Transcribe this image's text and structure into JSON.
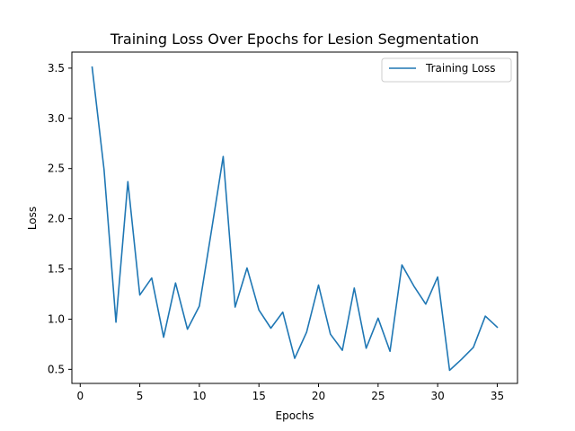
{
  "chart_data": {
    "type": "line",
    "title": "Training Loss Over Epochs for Lesion Segmentation",
    "xlabel": "Epochs",
    "ylabel": "Loss",
    "xlim": [
      -0.7,
      36.7
    ],
    "ylim": [
      0.36,
      3.66
    ],
    "xticks": [
      0,
      5,
      10,
      15,
      20,
      25,
      30,
      35
    ],
    "yticks": [
      0.5,
      1.0,
      1.5,
      2.0,
      2.5,
      3.0,
      3.5
    ],
    "grid": false,
    "legend_position": "top-right",
    "series": [
      {
        "name": "Training Loss",
        "color": "#1f77b4",
        "x": [
          1,
          2,
          3,
          4,
          5,
          6,
          7,
          8,
          9,
          10,
          11,
          12,
          13,
          14,
          15,
          16,
          17,
          18,
          19,
          20,
          21,
          22,
          23,
          24,
          25,
          26,
          27,
          28,
          29,
          30,
          31,
          32,
          33,
          34,
          35
        ],
        "y": [
          3.51,
          2.49,
          0.97,
          2.37,
          1.24,
          1.41,
          0.82,
          1.36,
          0.9,
          1.13,
          1.87,
          2.62,
          1.12,
          1.51,
          1.09,
          0.91,
          1.07,
          0.61,
          0.87,
          1.34,
          0.85,
          0.69,
          1.31,
          0.71,
          1.01,
          0.68,
          1.54,
          1.33,
          1.15,
          1.42,
          0.49,
          0.6,
          0.72,
          1.03,
          0.92
        ]
      }
    ]
  }
}
